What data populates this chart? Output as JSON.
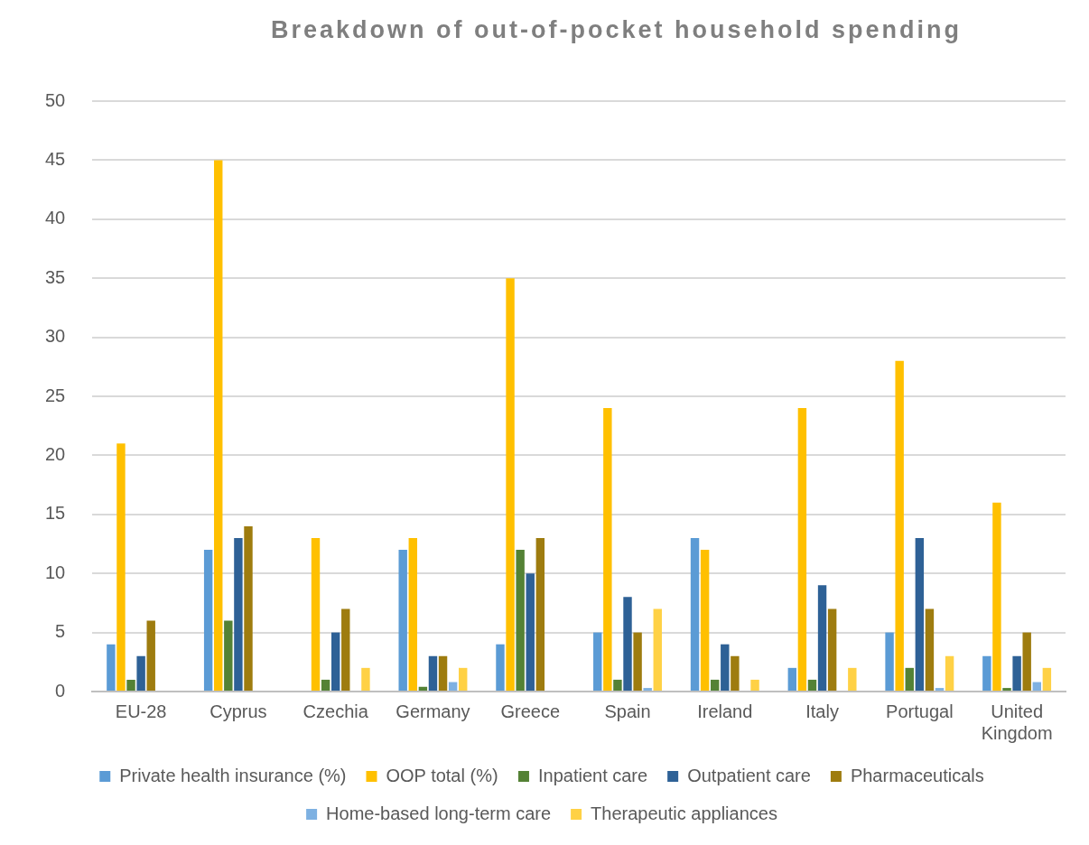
{
  "chart_data": {
    "type": "bar",
    "title": "Breakdown of out-of-pocket household spending",
    "categories": [
      "EU-28",
      "Cyprus",
      "Czechia",
      "Germany",
      "Greece",
      "Spain",
      "Ireland",
      "Italy",
      "Portugal",
      "United Kingdom"
    ],
    "series": [
      {
        "name": "Private health insurance (%)",
        "color": "#5b9bd5",
        "values": [
          4,
          12,
          null,
          12,
          4,
          5,
          13,
          2,
          5,
          3
        ]
      },
      {
        "name": "OOP total (%)",
        "color": "#ffc000",
        "values": [
          21,
          45,
          13,
          13,
          35,
          24,
          12,
          24,
          28,
          16
        ]
      },
      {
        "name": "Inpatient care",
        "color": "#548235",
        "values": [
          1,
          6,
          1,
          0.4,
          12,
          1,
          1,
          1,
          2,
          0.3
        ]
      },
      {
        "name": "Outpatient care",
        "color": "#2e6196",
        "values": [
          3,
          13,
          5,
          3,
          10,
          8,
          4,
          9,
          13,
          3
        ]
      },
      {
        "name": "Pharmaceuticals",
        "color": "#9e7c0f",
        "values": [
          6,
          14,
          7,
          3,
          13,
          5,
          3,
          7,
          7,
          5
        ]
      },
      {
        "name": "Home-based long-term care",
        "color": "#7eb1e2",
        "values": [
          null,
          null,
          null,
          0.8,
          null,
          0.3,
          null,
          null,
          0.3,
          0.8
        ]
      },
      {
        "name": "Therapeutic appliances",
        "color": "#ffd145",
        "values": [
          null,
          null,
          2,
          2,
          null,
          7,
          1,
          2,
          3,
          2
        ]
      }
    ],
    "ylim": [
      0,
      50
    ],
    "yticks": [
      0,
      5,
      10,
      15,
      20,
      25,
      30,
      35,
      40,
      45,
      50
    ],
    "grid": "y",
    "legend": "bottom"
  }
}
